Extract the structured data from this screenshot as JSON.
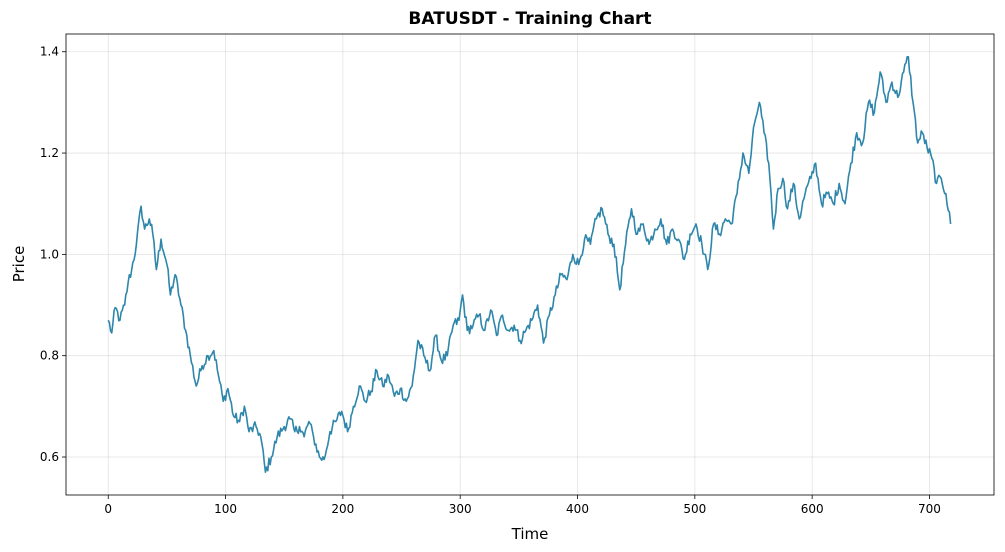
{
  "chart_data": {
    "type": "line",
    "title": "BATUSDT - Training Chart",
    "xlabel": "Time",
    "ylabel": "Price",
    "xlim": [
      -36,
      755
    ],
    "ylim": [
      0.525,
      1.435
    ],
    "xticks": [
      0,
      100,
      200,
      300,
      400,
      500,
      600,
      700
    ],
    "yticks": [
      0.6,
      0.8,
      1.0,
      1.2,
      1.4
    ],
    "ytick_labels": [
      "0.6",
      "0.8",
      "1.0",
      "1.2",
      "1.4"
    ],
    "grid": true,
    "line_color": "#2e86ab",
    "keypoints": [
      [
        0,
        0.87
      ],
      [
        3,
        0.845
      ],
      [
        6,
        0.895
      ],
      [
        10,
        0.87
      ],
      [
        14,
        0.9
      ],
      [
        17,
        0.945
      ],
      [
        20,
        0.97
      ],
      [
        24,
        1.02
      ],
      [
        28,
        1.095
      ],
      [
        31,
        1.05
      ],
      [
        35,
        1.07
      ],
      [
        38,
        1.04
      ],
      [
        41,
        0.97
      ],
      [
        45,
        1.03
      ],
      [
        50,
        0.98
      ],
      [
        53,
        0.92
      ],
      [
        57,
        0.96
      ],
      [
        62,
        0.9
      ],
      [
        66,
        0.85
      ],
      [
        70,
        0.8
      ],
      [
        75,
        0.74
      ],
      [
        80,
        0.78
      ],
      [
        85,
        0.8
      ],
      [
        90,
        0.81
      ],
      [
        94,
        0.76
      ],
      [
        98,
        0.71
      ],
      [
        102,
        0.735
      ],
      [
        107,
        0.68
      ],
      [
        112,
        0.67
      ],
      [
        116,
        0.7
      ],
      [
        120,
        0.65
      ],
      [
        126,
        0.66
      ],
      [
        130,
        0.64
      ],
      [
        134,
        0.57
      ],
      [
        139,
        0.6
      ],
      [
        144,
        0.64
      ],
      [
        150,
        0.66
      ],
      [
        155,
        0.675
      ],
      [
        159,
        0.65
      ],
      [
        163,
        0.66
      ],
      [
        167,
        0.64
      ],
      [
        171,
        0.67
      ],
      [
        175,
        0.64
      ],
      [
        180,
        0.6
      ],
      [
        184,
        0.595
      ],
      [
        189,
        0.65
      ],
      [
        194,
        0.67
      ],
      [
        199,
        0.69
      ],
      [
        204,
        0.65
      ],
      [
        209,
        0.7
      ],
      [
        214,
        0.74
      ],
      [
        219,
        0.71
      ],
      [
        224,
        0.73
      ],
      [
        229,
        0.77
      ],
      [
        234,
        0.74
      ],
      [
        239,
        0.76
      ],
      [
        244,
        0.72
      ],
      [
        249,
        0.735
      ],
      [
        254,
        0.71
      ],
      [
        259,
        0.74
      ],
      [
        264,
        0.83
      ],
      [
        269,
        0.8
      ],
      [
        274,
        0.77
      ],
      [
        279,
        0.84
      ],
      [
        284,
        0.79
      ],
      [
        289,
        0.8
      ],
      [
        294,
        0.86
      ],
      [
        299,
        0.87
      ],
      [
        302,
        0.92
      ],
      [
        306,
        0.85
      ],
      [
        311,
        0.86
      ],
      [
        316,
        0.88
      ],
      [
        321,
        0.85
      ],
      [
        326,
        0.89
      ],
      [
        331,
        0.84
      ],
      [
        336,
        0.88
      ],
      [
        341,
        0.85
      ],
      [
        346,
        0.86
      ],
      [
        351,
        0.83
      ],
      [
        356,
        0.85
      ],
      [
        361,
        0.87
      ],
      [
        366,
        0.9
      ],
      [
        371,
        0.825
      ],
      [
        376,
        0.88
      ],
      [
        381,
        0.92
      ],
      [
        386,
        0.96
      ],
      [
        391,
        0.95
      ],
      [
        396,
        1.0
      ],
      [
        401,
        0.98
      ],
      [
        406,
        1.03
      ],
      [
        411,
        1.02
      ],
      [
        416,
        1.07
      ],
      [
        421,
        1.09
      ],
      [
        426,
        1.04
      ],
      [
        431,
        1.02
      ],
      [
        436,
        0.93
      ],
      [
        441,
        1.02
      ],
      [
        446,
        1.09
      ],
      [
        451,
        1.04
      ],
      [
        456,
        1.06
      ],
      [
        461,
        1.02
      ],
      [
        466,
        1.05
      ],
      [
        471,
        1.07
      ],
      [
        476,
        1.02
      ],
      [
        481,
        1.05
      ],
      [
        486,
        1.03
      ],
      [
        491,
        0.99
      ],
      [
        496,
        1.04
      ],
      [
        501,
        1.06
      ],
      [
        506,
        1.02
      ],
      [
        511,
        0.97
      ],
      [
        516,
        1.06
      ],
      [
        521,
        1.04
      ],
      [
        526,
        1.07
      ],
      [
        531,
        1.06
      ],
      [
        536,
        1.12
      ],
      [
        541,
        1.2
      ],
      [
        546,
        1.16
      ],
      [
        551,
        1.26
      ],
      [
        555,
        1.3
      ],
      [
        559,
        1.24
      ],
      [
        563,
        1.18
      ],
      [
        567,
        1.05
      ],
      [
        571,
        1.13
      ],
      [
        575,
        1.15
      ],
      [
        579,
        1.09
      ],
      [
        584,
        1.14
      ],
      [
        589,
        1.07
      ],
      [
        594,
        1.12
      ],
      [
        599,
        1.15
      ],
      [
        603,
        1.18
      ],
      [
        608,
        1.1
      ],
      [
        613,
        1.12
      ],
      [
        618,
        1.1
      ],
      [
        623,
        1.14
      ],
      [
        628,
        1.1
      ],
      [
        633,
        1.18
      ],
      [
        638,
        1.24
      ],
      [
        643,
        1.22
      ],
      [
        648,
        1.3
      ],
      [
        653,
        1.28
      ],
      [
        658,
        1.36
      ],
      [
        663,
        1.3
      ],
      [
        668,
        1.34
      ],
      [
        673,
        1.31
      ],
      [
        678,
        1.36
      ],
      [
        682,
        1.39
      ],
      [
        686,
        1.3
      ],
      [
        690,
        1.22
      ],
      [
        694,
        1.24
      ],
      [
        698,
        1.21
      ],
      [
        702,
        1.19
      ],
      [
        706,
        1.14
      ],
      [
        710,
        1.15
      ],
      [
        714,
        1.12
      ],
      [
        718,
        1.06
      ]
    ]
  }
}
